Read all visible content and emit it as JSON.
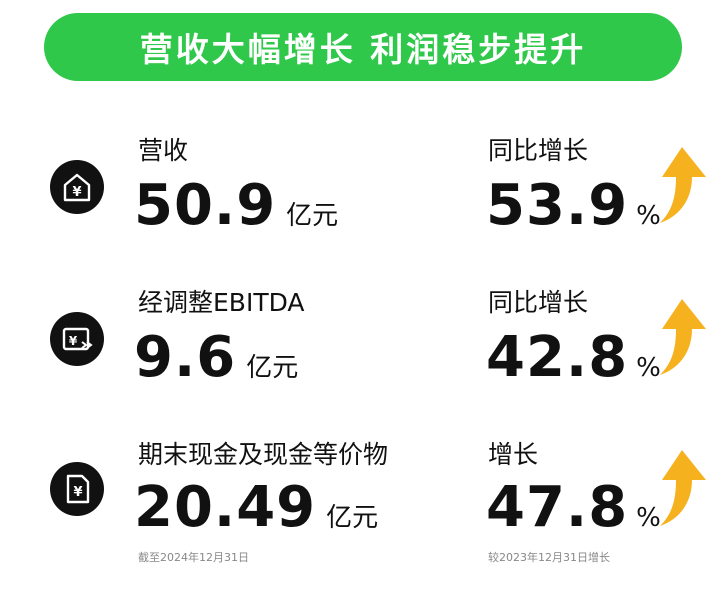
{
  "title": "营收大幅增长 利润稳步提升",
  "metrics": [
    {
      "icon": "house-yen-icon",
      "label": "营收",
      "value": "50.9",
      "unit": "亿元",
      "change_label": "同比增长",
      "change_value": "53.9",
      "change_unit": "%"
    },
    {
      "icon": "yen-card-icon",
      "label": "经调整EBITDA",
      "value": "9.6",
      "unit": "亿元",
      "change_label": "同比增长",
      "change_value": "42.8",
      "change_unit": "%"
    },
    {
      "icon": "yen-document-icon",
      "label": "期末现金及现金等价物",
      "value": "20.49",
      "unit": "亿元",
      "change_label": "增长",
      "change_value": "47.8",
      "change_unit": "%"
    }
  ],
  "footnotes": {
    "left": "截至2024年12月31日",
    "right": "较2023年12月31日增长"
  },
  "colors": {
    "banner": "#2fc84a",
    "arrow": "#f6b21e",
    "icon_bg": "#111111"
  }
}
